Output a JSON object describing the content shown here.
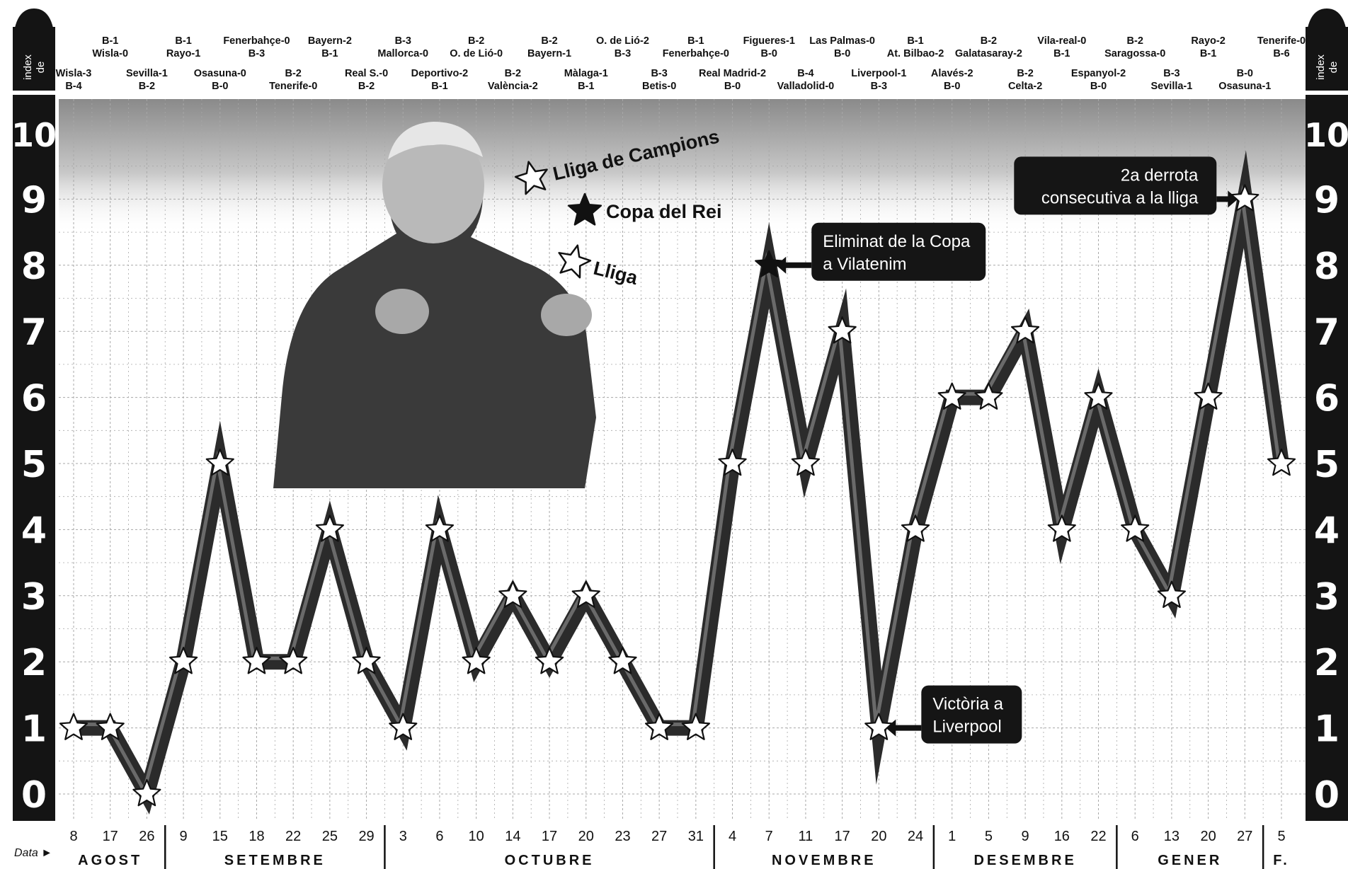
{
  "chart_data": {
    "type": "line",
    "y_axis_label": "index de",
    "x_axis_label": "Data",
    "ylim": [
      0,
      10
    ],
    "y_ticks": [
      "0",
      "1",
      "2",
      "3",
      "4",
      "5",
      "6",
      "7",
      "8",
      "9",
      "10"
    ],
    "grid": true,
    "points": [
      {
        "day": "8",
        "value": 1,
        "match": [
          "Wisla-3",
          "B-4"
        ],
        "comp": "champions"
      },
      {
        "day": "17",
        "value": 1,
        "match": [
          "B-1",
          "Wisla-0"
        ],
        "comp": "champions"
      },
      {
        "day": "26",
        "value": 0,
        "match": [
          "Sevilla-1",
          "B-2"
        ],
        "comp": "lliga"
      },
      {
        "day": "9",
        "value": 2,
        "match": [
          "B-1",
          "Rayo-1"
        ],
        "comp": "lliga"
      },
      {
        "day": "15",
        "value": 5,
        "match": [
          "Osasuna-0",
          "B-0"
        ],
        "comp": "lliga"
      },
      {
        "day": "18",
        "value": 2,
        "match": [
          "Fenerbahçe-0",
          "B-3"
        ],
        "comp": "champions"
      },
      {
        "day": "22",
        "value": 2,
        "match": [
          "B-2",
          "Tenerife-0"
        ],
        "comp": "lliga"
      },
      {
        "day": "25",
        "value": 4,
        "match": [
          "Bayern-2",
          "B-1"
        ],
        "comp": "champions"
      },
      {
        "day": "29",
        "value": 2,
        "match": [
          "Real S.-0",
          "B-2"
        ],
        "comp": "lliga"
      },
      {
        "day": "3",
        "value": 1,
        "match": [
          "B-3",
          "Mallorca-0"
        ],
        "comp": "lliga"
      },
      {
        "day": "6",
        "value": 4,
        "match": [
          "Deportivo-2",
          "B-1"
        ],
        "comp": "lliga"
      },
      {
        "day": "10",
        "value": 2,
        "match": [
          "B-2",
          "O. de Lió-0"
        ],
        "comp": "champions"
      },
      {
        "day": "14",
        "value": 3,
        "match": [
          "B-2",
          "València-2"
        ],
        "comp": "lliga"
      },
      {
        "day": "17",
        "value": 2,
        "match": [
          "B-2",
          "Bayern-1"
        ],
        "comp": "champions"
      },
      {
        "day": "20",
        "value": 3,
        "match": [
          "Màlaga-1",
          "B-1"
        ],
        "comp": "lliga"
      },
      {
        "day": "23",
        "value": 2,
        "match": [
          "O. de Lió-2",
          "B-3"
        ],
        "comp": "champions"
      },
      {
        "day": "27",
        "value": 1,
        "match": [
          "B-3",
          "Betis-0"
        ],
        "comp": "lliga"
      },
      {
        "day": "31",
        "value": 1,
        "match": [
          "B-1",
          "Fenerbahçe-0"
        ],
        "comp": "champions"
      },
      {
        "day": "4",
        "value": 5,
        "match": [
          "Real Madrid-2",
          "B-0"
        ],
        "comp": "lliga"
      },
      {
        "day": "7",
        "value": 8,
        "match": [
          "Figueres-1",
          "B-0"
        ],
        "comp": "copa"
      },
      {
        "day": "11",
        "value": 5,
        "match": [
          "B-4",
          "Valladolid-0"
        ],
        "comp": "lliga"
      },
      {
        "day": "17",
        "value": 7,
        "match": [
          "Las Palmas-0",
          "B-0"
        ],
        "comp": "lliga"
      },
      {
        "day": "20",
        "value": 1,
        "match": [
          "Liverpool-1",
          "B-3"
        ],
        "comp": "champions"
      },
      {
        "day": "24",
        "value": 4,
        "match": [
          "B-1",
          "At. Bilbao-2"
        ],
        "comp": "lliga"
      },
      {
        "day": "1",
        "value": 6,
        "match": [
          "Alavés-2",
          "B-0"
        ],
        "comp": "lliga"
      },
      {
        "day": "5",
        "value": 6,
        "match": [
          "B-2",
          "Galatasaray-2"
        ],
        "comp": "champions"
      },
      {
        "day": "9",
        "value": 7,
        "match": [
          "B-2",
          "Celta-2"
        ],
        "comp": "lliga"
      },
      {
        "day": "16",
        "value": 4,
        "match": [
          "Vila-real-0",
          "B-1"
        ],
        "comp": "lliga"
      },
      {
        "day": "22",
        "value": 6,
        "match": [
          "Espanyol-2",
          "B-0"
        ],
        "comp": "lliga"
      },
      {
        "day": "6",
        "value": 4,
        "match": [
          "B-2",
          "Saragossa-0"
        ],
        "comp": "lliga"
      },
      {
        "day": "13",
        "value": 3,
        "match": [
          "B-3",
          "Sevilla-1"
        ],
        "comp": "lliga"
      },
      {
        "day": "20",
        "value": 6,
        "match": [
          "Rayo-2",
          "B-1"
        ],
        "comp": "lliga"
      },
      {
        "day": "27",
        "value": 9,
        "match": [
          "B-0",
          "Osasuna-1"
        ],
        "comp": "lliga"
      },
      {
        "day": "5",
        "value": 5,
        "match": [
          "Tenerife-0",
          "B-6"
        ],
        "comp": "lliga"
      }
    ],
    "months": [
      {
        "label": "AGOST",
        "first": 0,
        "last": 2
      },
      {
        "label": "SETEMBRE",
        "first": 3,
        "last": 8
      },
      {
        "label": "OCTUBRE",
        "first": 9,
        "last": 17
      },
      {
        "label": "NOVEMBRE",
        "first": 18,
        "last": 23
      },
      {
        "label": "DESEMBRE",
        "first": 24,
        "last": 28
      },
      {
        "label": "GENER",
        "first": 29,
        "last": 32
      },
      {
        "label": "F.",
        "first": 33,
        "last": 33
      }
    ],
    "legend": [
      {
        "label": "Lliga de Campions",
        "star": "outline"
      },
      {
        "label": "Copa del Rei",
        "star": "black"
      },
      {
        "label": "Lliga",
        "star": "outline"
      }
    ],
    "annotations": [
      {
        "point": 19,
        "lines": [
          "Eliminat de la Copa",
          "a Vilatenim"
        ],
        "side": "right"
      },
      {
        "point": 22,
        "lines": [
          "Victòria a",
          "Liverpool"
        ],
        "side": "right"
      },
      {
        "point": 32,
        "lines": [
          "2a derrota",
          "consecutiva a la lliga"
        ],
        "side": "left"
      }
    ]
  },
  "colors": {
    "axis_bar": "#141414",
    "line": "#2b2b2b",
    "line_highlight": "#6a6a6a",
    "grid": "#a8a8a8",
    "callout_bg": "#151515",
    "callout_text": "#ffffff"
  },
  "image_description": "photo-of-coach"
}
